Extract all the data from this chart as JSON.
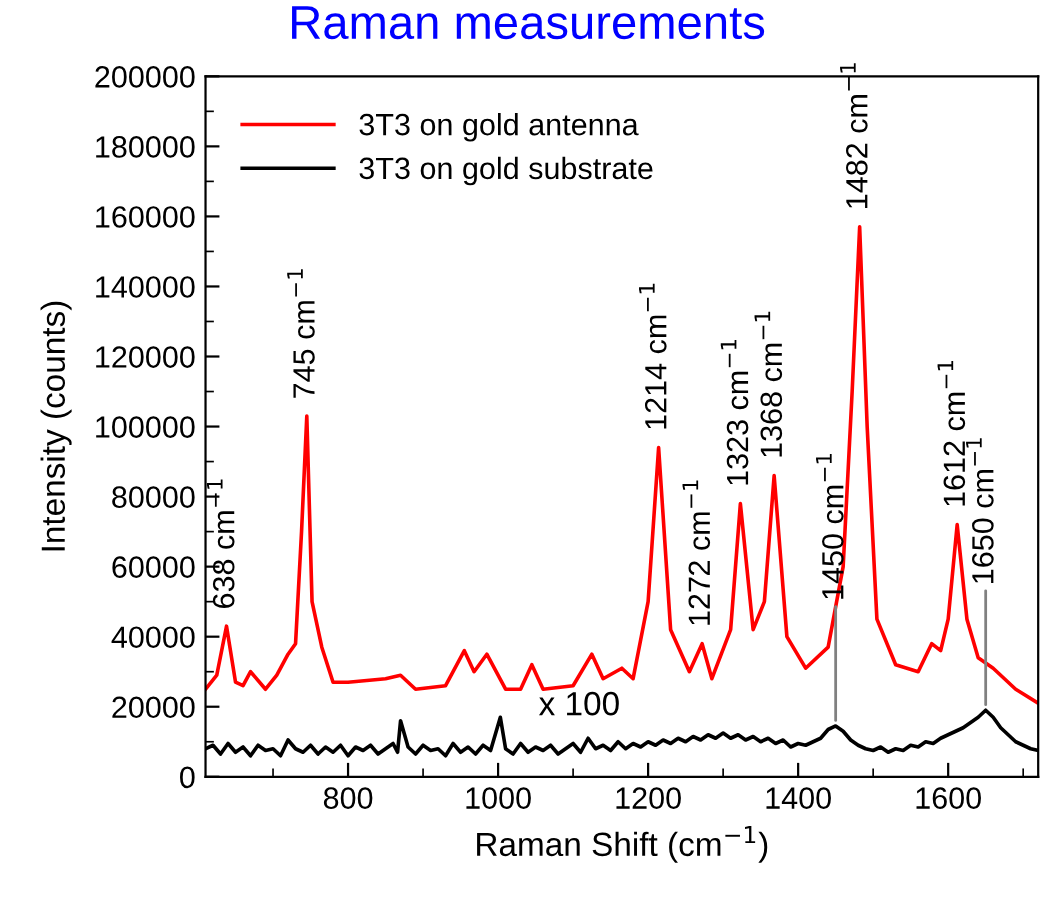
{
  "chart_data": {
    "type": "line",
    "title": "Raman measurements",
    "xlabel": "Raman Shift (cm$^{−1}$)",
    "ylabel": "Intensity (counts)",
    "xlim": [
      610,
      1720
    ],
    "xticks": [
      800,
      1000,
      1200,
      1400,
      1600
    ],
    "ylim": [
      0,
      200000
    ],
    "yticks": [
      0,
      20000,
      40000,
      60000,
      80000,
      100000,
      120000,
      140000,
      160000,
      180000,
      200000
    ],
    "legend": "top left",
    "grid": false,
    "series": [
      {
        "name": "3T3 on gold antenna",
        "color": "#ff0000",
        "x": [
          610,
          625,
          638,
          650,
          660,
          670,
          690,
          705,
          720,
          730,
          738,
          745,
          752,
          765,
          780,
          800,
          850,
          870,
          890,
          930,
          955,
          968,
          985,
          1010,
          1030,
          1045,
          1060,
          1100,
          1125,
          1140,
          1165,
          1180,
          1200,
          1214,
          1230,
          1255,
          1272,
          1285,
          1310,
          1323,
          1340,
          1355,
          1368,
          1385,
          1410,
          1440,
          1460,
          1472,
          1482,
          1492,
          1505,
          1530,
          1560,
          1578,
          1590,
          1600,
          1612,
          1625,
          1640,
          1660,
          1690,
          1720
        ],
        "values": [
          25000,
          29000,
          43000,
          27000,
          26000,
          30000,
          25000,
          29000,
          35000,
          38000,
          70000,
          103000,
          50000,
          37000,
          27000,
          27000,
          28000,
          29000,
          25000,
          26000,
          36000,
          30000,
          35000,
          25000,
          25000,
          32000,
          25000,
          26000,
          35000,
          28000,
          31000,
          28000,
          50000,
          94000,
          42000,
          30000,
          38000,
          28000,
          42000,
          78000,
          42000,
          50000,
          86000,
          40000,
          31000,
          37000,
          60000,
          110000,
          157000,
          100000,
          45000,
          32000,
          30000,
          38000,
          36000,
          45000,
          72000,
          45000,
          34000,
          31000,
          25000,
          21000
        ]
      },
      {
        "name": "3T3 on gold substrate",
        "color": "#000000",
        "x": [
          610,
          620,
          630,
          640,
          650,
          660,
          670,
          680,
          690,
          700,
          710,
          720,
          730,
          740,
          750,
          760,
          770,
          780,
          790,
          800,
          810,
          820,
          830,
          840,
          850,
          860,
          866,
          870,
          880,
          890,
          900,
          910,
          920,
          930,
          940,
          950,
          960,
          970,
          980,
          990,
          1003,
          1010,
          1020,
          1030,
          1040,
          1050,
          1060,
          1070,
          1080,
          1090,
          1100,
          1110,
          1120,
          1130,
          1140,
          1150,
          1160,
          1170,
          1180,
          1190,
          1200,
          1210,
          1220,
          1230,
          1240,
          1250,
          1260,
          1270,
          1280,
          1290,
          1300,
          1310,
          1320,
          1330,
          1340,
          1350,
          1360,
          1370,
          1380,
          1390,
          1400,
          1410,
          1420,
          1430,
          1440,
          1450,
          1460,
          1470,
          1480,
          1490,
          1500,
          1510,
          1520,
          1530,
          1540,
          1550,
          1560,
          1570,
          1580,
          1590,
          1600,
          1610,
          1620,
          1630,
          1640,
          1650,
          1660,
          1670,
          1680,
          1690,
          1700,
          1710,
          1720
        ],
        "values": [
          8000,
          9000,
          6500,
          9500,
          7000,
          8500,
          6000,
          9000,
          7500,
          8000,
          6000,
          10500,
          8000,
          7000,
          9000,
          6500,
          8500,
          7000,
          9000,
          6000,
          8500,
          7500,
          9000,
          6500,
          8000,
          9500,
          7000,
          16000,
          8500,
          6500,
          9000,
          7500,
          8000,
          6000,
          9500,
          7000,
          8500,
          6500,
          9000,
          7500,
          17000,
          8000,
          6500,
          9500,
          7000,
          8500,
          7500,
          9000,
          6500,
          8000,
          9500,
          7000,
          11000,
          8000,
          9000,
          7500,
          10000,
          8000,
          9500,
          8500,
          10000,
          9000,
          10500,
          9500,
          11000,
          10000,
          11500,
          10500,
          12000,
          11000,
          12500,
          11000,
          12000,
          10500,
          11500,
          10000,
          11000,
          9500,
          10500,
          8500,
          9500,
          9000,
          10000,
          11000,
          13500,
          14500,
          13000,
          10500,
          9000,
          8000,
          7500,
          8500,
          7000,
          8000,
          7500,
          9000,
          8500,
          10000,
          9500,
          11000,
          12000,
          13000,
          14000,
          15500,
          17000,
          19000,
          17000,
          14000,
          12000,
          10000,
          9000,
          8000,
          7500
        ]
      }
    ],
    "annotations": [
      {
        "text": "638 cm$^{−1}$",
        "x": 638,
        "y": 43000
      },
      {
        "text": "745 cm$^{−1}$",
        "x": 745,
        "y": 103000
      },
      {
        "text": "1214 cm$^{−1}$",
        "x": 1214,
        "y": 94000
      },
      {
        "text": "1272 cm$^{−1}$",
        "x": 1272,
        "y": 38000
      },
      {
        "text": "1323 cm$^{−1}$",
        "x": 1323,
        "y": 78000
      },
      {
        "text": "1368 cm$^{−1}$",
        "x": 1368,
        "y": 86000
      },
      {
        "text": "1450 cm$^{−1}$",
        "x": 1450,
        "y": 14500
      },
      {
        "text": "1482 cm$^{−1}$",
        "x": 1482,
        "y": 157000
      },
      {
        "text": "1612 cm$^{−1}$",
        "x": 1612,
        "y": 72000
      },
      {
        "text": "1650 cm$^{−1}$",
        "x": 1650,
        "y": 19000
      },
      "x 100"
    ]
  }
}
